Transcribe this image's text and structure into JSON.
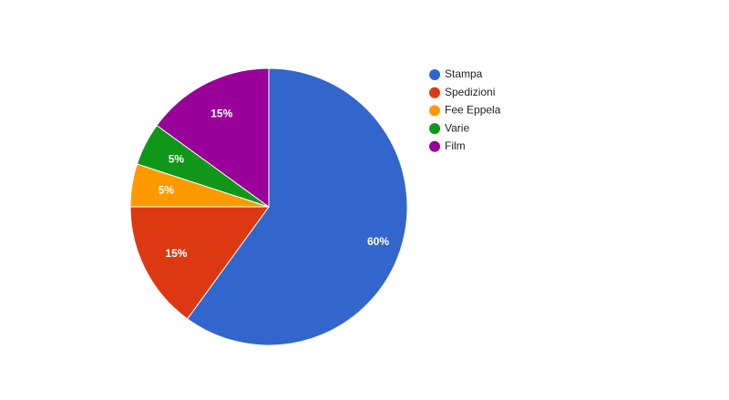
{
  "chart_data": {
    "type": "pie",
    "categories": [
      "Stampa",
      "Spedizioni",
      "Fee Eppela",
      "Varie",
      "Film"
    ],
    "values": [
      60,
      15,
      5,
      5,
      15
    ],
    "value_labels": [
      "60%",
      "15%",
      "5%",
      "5%",
      "15%"
    ],
    "colors": [
      "#3366cc",
      "#dc3912",
      "#ff9900",
      "#109618",
      "#990099"
    ],
    "legend": "right"
  }
}
